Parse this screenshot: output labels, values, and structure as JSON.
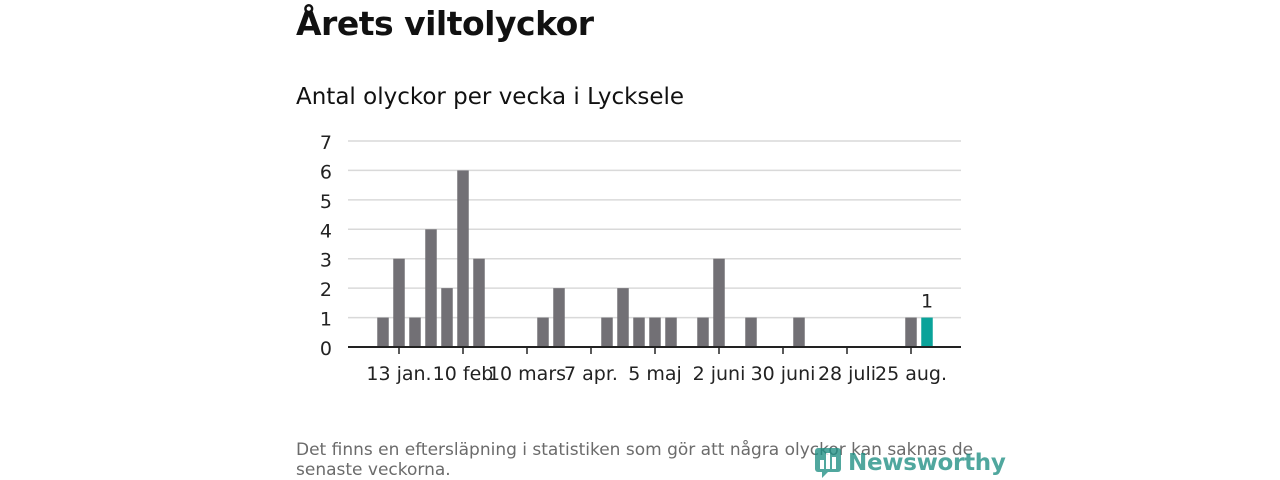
{
  "title": "Årets viltolyckor",
  "footnote": "Det finns en eftersläpning i statistiken som gör att några olyckor kan saknas de senaste veckorna.",
  "brand": {
    "logo_text": "Newsworthy",
    "logo_icon": "bar-chart-icon",
    "color": "#1f8f84"
  },
  "colors": {
    "bar": "#727075",
    "highlight": "#0aa39a",
    "grid": "#d9d9d9",
    "axis": "#222222"
  },
  "chart_data": {
    "type": "bar",
    "title": "Antal olyckor per vecka i Lycksele",
    "xlabel": "",
    "ylabel": "",
    "ylim": [
      0,
      7
    ],
    "yticks": [
      0,
      1,
      2,
      3,
      4,
      5,
      6,
      7
    ],
    "grid": true,
    "x_tick_labels": [
      {
        "label": "13 jan.",
        "week": 2
      },
      {
        "label": "10 feb",
        "week": 6
      },
      {
        "label": "10 mars",
        "week": 10
      },
      {
        "label": "7 apr.",
        "week": 14
      },
      {
        "label": "5 maj",
        "week": 18
      },
      {
        "label": "2 juni",
        "week": 22
      },
      {
        "label": "30 juni",
        "week": 26
      },
      {
        "label": "28 juli",
        "week": 30
      },
      {
        "label": "25 aug.",
        "week": 34
      }
    ],
    "weeks": [
      1,
      2,
      3,
      4,
      5,
      6,
      7,
      8,
      9,
      10,
      11,
      12,
      13,
      14,
      15,
      16,
      17,
      18,
      19,
      20,
      21,
      22,
      23,
      24,
      25,
      26,
      27,
      28,
      29,
      30,
      31,
      32,
      33,
      34,
      35
    ],
    "values": [
      1,
      3,
      1,
      4,
      2,
      6,
      3,
      0,
      0,
      0,
      1,
      2,
      0,
      0,
      1,
      2,
      1,
      1,
      1,
      0,
      1,
      3,
      0,
      1,
      0,
      0,
      1,
      0,
      0,
      0,
      0,
      0,
      0,
      1,
      1
    ],
    "highlight_index": 34,
    "highlight_label": "1"
  }
}
